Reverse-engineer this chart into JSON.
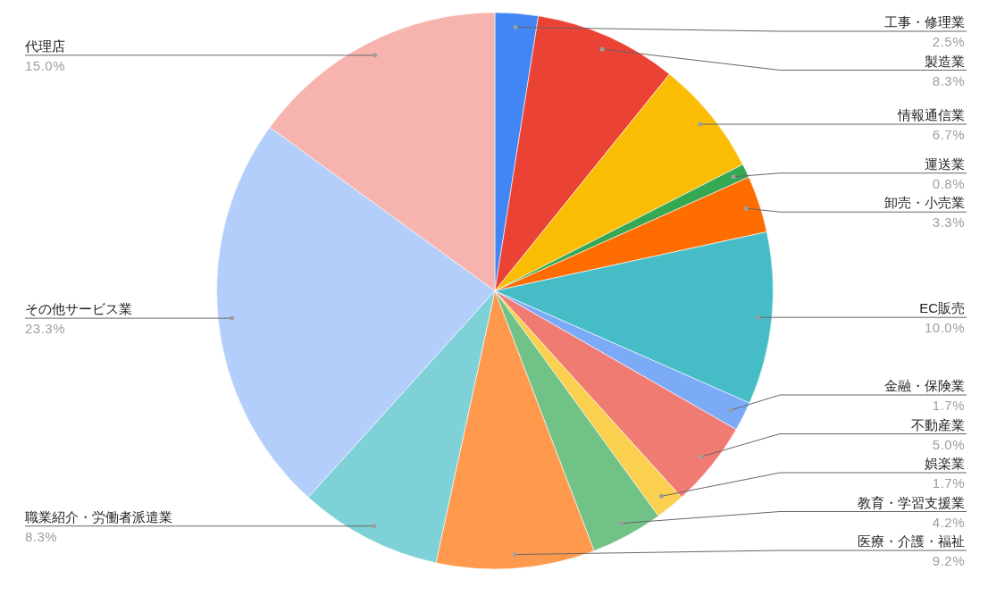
{
  "chart_data": {
    "type": "pie",
    "categories": [
      "工事・修理業",
      "製造業",
      "情報通信業",
      "運送業",
      "卸売・小売業",
      "EC販売",
      "金融・保険業",
      "不動産業",
      "娯楽業",
      "教育・学習支援業",
      "医療・介護・福祉",
      "職業紹介・労働者派遣業",
      "その他サービス業",
      "代理店"
    ],
    "values": [
      2.5,
      8.3,
      6.7,
      0.8,
      3.3,
      10.0,
      1.7,
      5.0,
      1.7,
      4.2,
      9.2,
      8.3,
      23.3,
      15.0
    ],
    "value_labels": [
      "2.5%",
      "8.3%",
      "6.7%",
      "0.8%",
      "3.3%",
      "10.0%",
      "1.7%",
      "5.0%",
      "1.7%",
      "4.2%",
      "9.2%",
      "8.3%",
      "23.3%",
      "15.0%"
    ],
    "colors": [
      "#4285f4",
      "#ea4335",
      "#fbbc04",
      "#34a853",
      "#ff6d01",
      "#46bdc6",
      "#7baaf7",
      "#f07b72",
      "#fcd04f",
      "#71c287",
      "#ff994d",
      "#7ed1d7",
      "#b3cefb",
      "#f7b4ae"
    ]
  }
}
